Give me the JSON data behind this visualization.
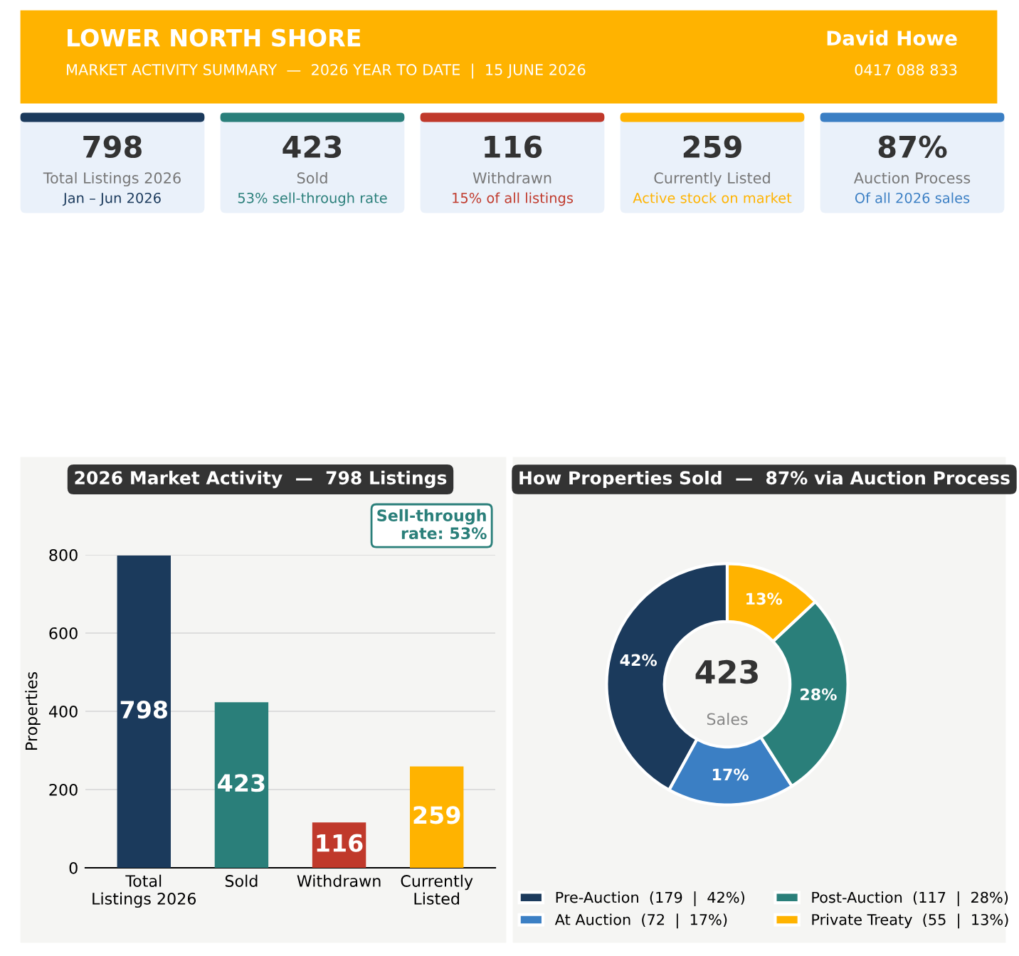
{
  "chart_data": [
    {
      "type": "other",
      "title": "LOWER NORTH SHORE",
      "subtitle": "MARKET ACTIVITY SUMMARY  —  2026 YEAR TO DATE  |  15 JUNE 2026",
      "color": "#ffb300",
      "annotations": [
        "David Howe",
        "0417 088 833",
        "798",
        "Total Listings 2026",
        "Jan – Jun 2026",
        "423",
        "Sold",
        "53% sell-through rate",
        "116",
        "Withdrawn",
        "15% of all listings",
        "259",
        "Currently Listed",
        "Active stock on market",
        "87%",
        "Auction Process",
        "Of all 2026 sales"
      ],
      "colors": [
        "#1b3a5c",
        "#2a7f7a",
        "#c0392b",
        "#ffb300",
        "#3b7fc4"
      ]
    },
    {
      "type": "bar",
      "title": "2026 Market Activity  —  798 Listings",
      "categories": [
        "Total\nListings 2026",
        "Sold",
        "Withdrawn",
        "Currently\nListed"
      ],
      "values": [
        798,
        423,
        116,
        259
      ],
      "colors": [
        "#1b3a5c",
        "#2a7f7a",
        "#c0392b",
        "#ffb300"
      ],
      "ylabel": "Properties",
      "ylim": [
        0,
        800
      ],
      "yticks": [
        0,
        200,
        400,
        600,
        800
      ],
      "grid": "y",
      "data_labels": true,
      "annotations": [
        "Sell-through\nrate: 53%"
      ]
    },
    {
      "type": "donut",
      "title": "How Properties Sold  —  87% via Auction Process",
      "categories": [
        "Pre-Auction  (179  |  42%)",
        "At Auction  (72  |  17%)",
        "Post-Auction  (117  |  28%)",
        "Private Treaty  (55  |  13%)"
      ],
      "values": [
        42,
        17,
        28,
        13
      ],
      "value_labels": [
        "42%",
        "17%",
        "28%",
        "13%"
      ],
      "colors": [
        "#1b3a5c",
        "#3b7fc4",
        "#2a7f7a",
        "#ffb300"
      ],
      "legend": "bottom",
      "annotations": [
        "423",
        "Sales"
      ]
    }
  ]
}
